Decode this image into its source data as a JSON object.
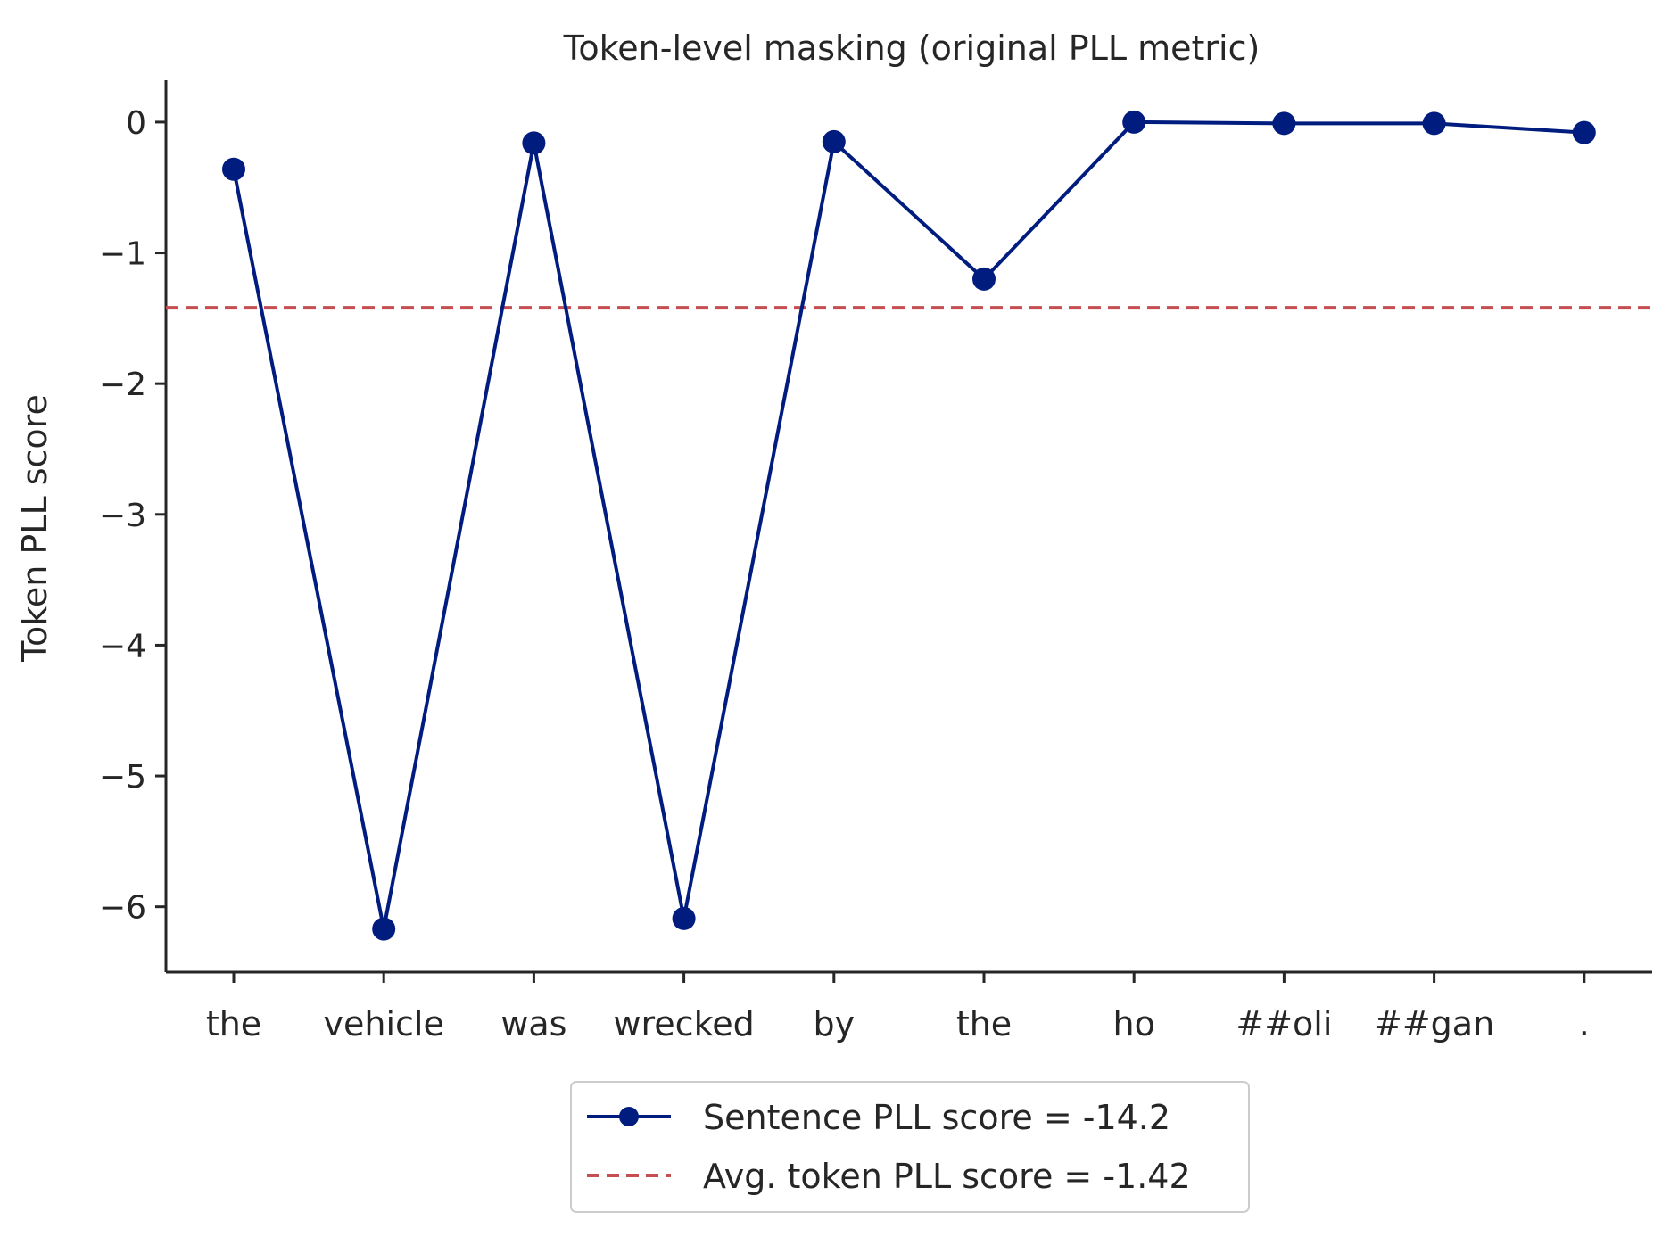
{
  "chart_data": {
    "type": "line",
    "title": "Token-level masking (original PLL metric)",
    "xlabel": "",
    "ylabel": "Token PLL score",
    "categories": [
      "the",
      "vehicle",
      "was",
      "wrecked",
      "by",
      "the",
      "ho",
      "##oli",
      "##gan",
      "."
    ],
    "ylim": [
      -6.5,
      0.32
    ],
    "yticks": [
      0,
      -1,
      -2,
      -3,
      -4,
      -5,
      -6
    ],
    "ytick_labels": [
      "0",
      "−1",
      "−2",
      "−3",
      "−4",
      "−5",
      "−6"
    ],
    "series": [
      {
        "name": "Sentence PLL score = -14.2",
        "style": "solid-line-with-circle-markers",
        "color": "#001c7f",
        "values": [
          -0.36,
          -6.17,
          -0.16,
          -6.09,
          -0.15,
          -1.2,
          0.0,
          -0.01,
          -0.01,
          -0.08
        ]
      }
    ],
    "reference_line": {
      "name": "Avg. token PLL score = -1.42",
      "style": "dashed",
      "color": "#c44e52",
      "y": -1.42
    },
    "grid": false,
    "legend_placement": "bottom-center, below plot"
  }
}
